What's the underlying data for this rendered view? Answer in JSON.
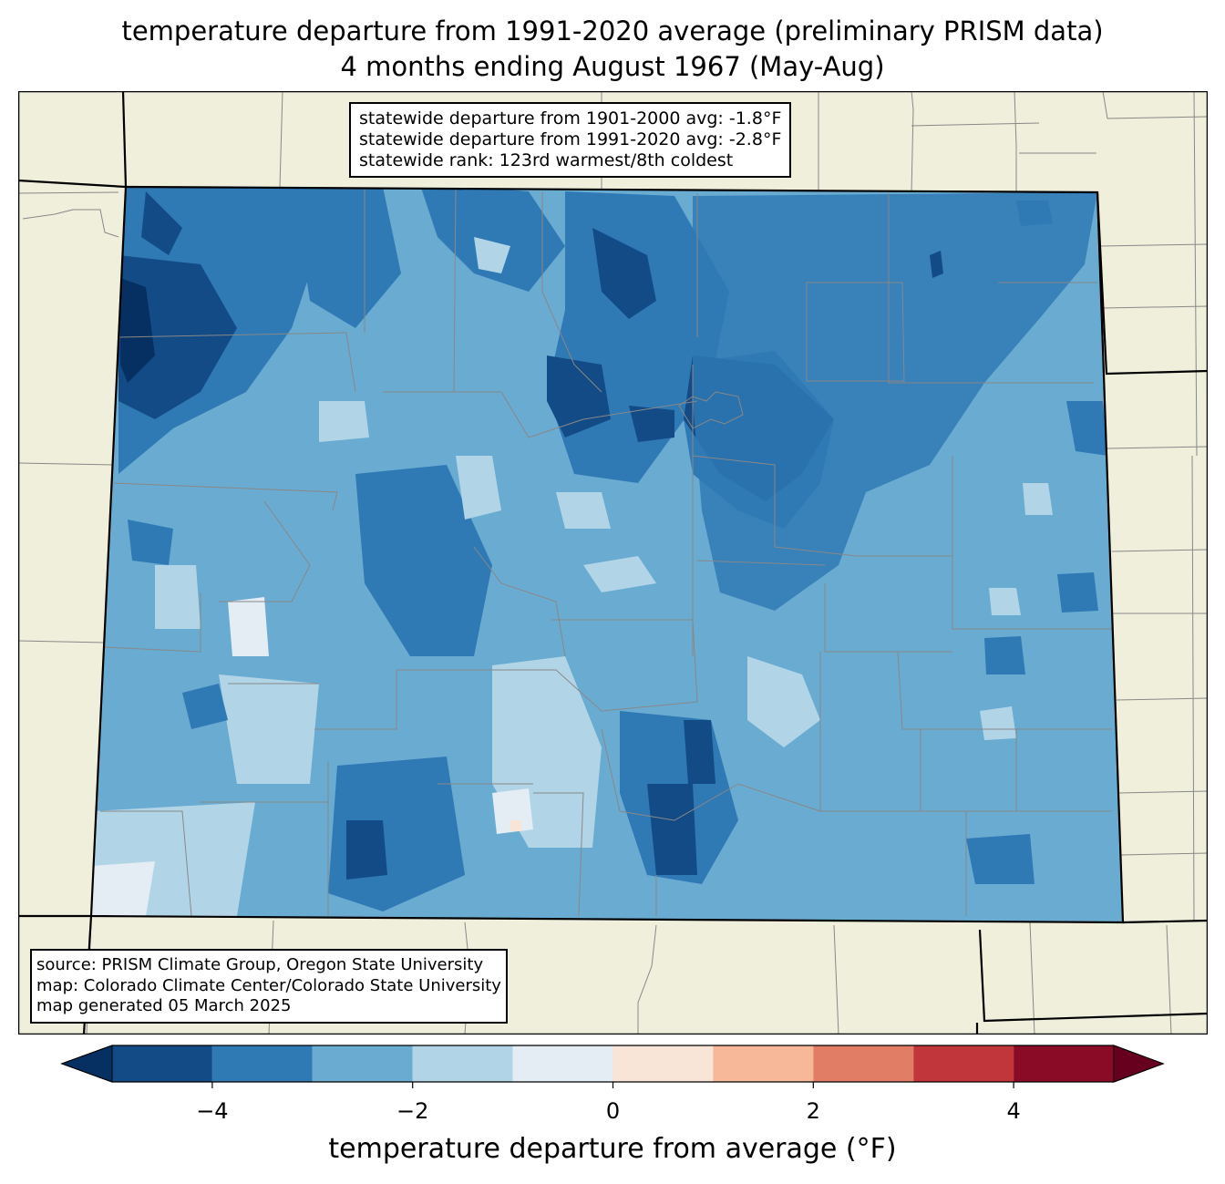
{
  "title": {
    "line1": "temperature departure from 1991-2020 average (preliminary PRISM data)",
    "line2": "4 months ending August 1967 (May-Aug)"
  },
  "stats": {
    "line1": "statewide departure from 1901-2000 avg: -1.8°F",
    "line2": "statewide departure from 1991-2020 avg: -2.8°F",
    "line3": "statewide rank: 123rd warmest/8th coldest"
  },
  "source": {
    "line1": "source: PRISM Climate Group, Oregon State University",
    "line2": "map: Colorado Climate Center/Colorado State University",
    "line3": "map generated 05 March 2025"
  },
  "colorbar": {
    "label": "temperature departure from average (°F)",
    "bins": [
      -5,
      -4,
      -3,
      -2,
      -1,
      0,
      1,
      2,
      3,
      4,
      5
    ],
    "colors": [
      "#134b87",
      "#2f79b5",
      "#6aabd2",
      "#b1d5e7",
      "#e3edf3",
      "#f9e4d8",
      "#f7b799",
      "#e17d64",
      "#c0363a",
      "#8a0b25"
    ],
    "under_color": "#053061",
    "over_color": "#67001f",
    "ticks": [
      {
        "value": -4,
        "label": "−4"
      },
      {
        "value": -2,
        "label": "−2"
      },
      {
        "value": 0,
        "label": "0"
      },
      {
        "value": 2,
        "label": "2"
      },
      {
        "value": 4,
        "label": "4"
      }
    ]
  },
  "map_colors": {
    "land_background": "#efefdc",
    "county_line": "#888888",
    "state_line": "#000000"
  }
}
